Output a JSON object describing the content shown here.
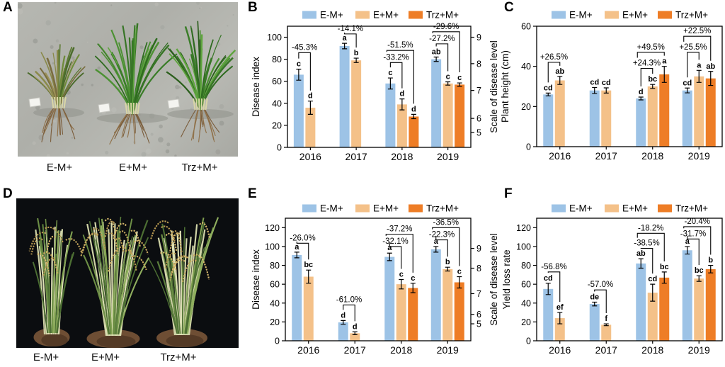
{
  "panels": {
    "A": {
      "letter": "A",
      "labels": [
        "E-M+",
        "E+M+",
        "Trz+M+"
      ]
    },
    "B": {
      "letter": "B"
    },
    "C": {
      "letter": "C"
    },
    "D": {
      "letter": "D",
      "labels": [
        "E-M+",
        "E+M+",
        "Trz+M+"
      ]
    },
    "E": {
      "letter": "E"
    },
    "F": {
      "letter": "F"
    }
  },
  "colors": {
    "series": [
      "#9DC3E6",
      "#F4C189",
      "#EE7D26"
    ],
    "axis": "#000000",
    "text": "#1a1a1a"
  },
  "chart_data": [
    {
      "panel": "B",
      "type": "bar",
      "categories": [
        "2016",
        "2017",
        "2018",
        "2019"
      ],
      "ylabel": "Disease index",
      "y2label": "Scale of disease level",
      "ylim": [
        0,
        110
      ],
      "yticks": [
        0,
        20,
        40,
        60,
        80,
        100
      ],
      "y2ticks": [
        {
          "label": "9",
          "at": 100
        },
        {
          "label": "8",
          "at": 76
        },
        {
          "label": "7",
          "at": 51.7
        },
        {
          "label": "6",
          "at": 26.3
        },
        {
          "label": "5",
          "at": 13.5
        }
      ],
      "legend_position": "top",
      "grid": false,
      "series": [
        {
          "name": "E-M+",
          "values": [
            66,
            92,
            58,
            80
          ],
          "errors": [
            5,
            2.5,
            5,
            2
          ],
          "letters": [
            "c",
            "a",
            "c",
            "ab"
          ]
        },
        {
          "name": "E+M+",
          "values": [
            36,
            79,
            39,
            58
          ],
          "errors": [
            6,
            2,
            5,
            1.5
          ],
          "letters": [
            "d",
            "b",
            "d",
            "c"
          ]
        },
        {
          "name": "Trz+M+",
          "values": [
            null,
            null,
            28,
            57
          ],
          "errors": [
            null,
            null,
            2,
            1.5
          ],
          "letters": [
            "",
            "",
            "d",
            "c"
          ]
        }
      ],
      "annotations": [
        {
          "cat": 0,
          "from": 0,
          "to": 1,
          "text": "-45.3%",
          "top": 86
        },
        {
          "cat": 1,
          "from": 0,
          "to": 1,
          "text": "-14.1%",
          "top": 103
        },
        {
          "cat": 2,
          "from": 0,
          "to": 1,
          "text": "-33.2%",
          "top": 77
        },
        {
          "cat": 2,
          "from": 0,
          "to": 2,
          "text": "-51.5%",
          "top": 88
        },
        {
          "cat": 3,
          "from": 0,
          "to": 1,
          "text": "-27.2%",
          "top": 94
        },
        {
          "cat": 3,
          "from": 0,
          "to": 2,
          "text": "-29.6%",
          "top": 105
        }
      ]
    },
    {
      "panel": "C",
      "type": "bar",
      "categories": [
        "2016",
        "2017",
        "2018",
        "2019"
      ],
      "ylabel": "Plant height (cm)",
      "ylim": [
        0,
        60
      ],
      "yticks": [
        0,
        20,
        40,
        60
      ],
      "legend_position": "top",
      "grid": false,
      "series": [
        {
          "name": "E-M+",
          "values": [
            26,
            28,
            24,
            28
          ],
          "errors": [
            0.7,
            1.5,
            0.7,
            1.2
          ],
          "letters": [
            "cd",
            "cd",
            "d",
            "cd"
          ]
        },
        {
          "name": "E+M+",
          "values": [
            33,
            28,
            30,
            35
          ],
          "errors": [
            2,
            1.3,
            1,
            3
          ],
          "letters": [
            "ab",
            "cd",
            "bc",
            "a"
          ]
        },
        {
          "name": "Trz+M+",
          "values": [
            null,
            null,
            36,
            34
          ],
          "errors": [
            null,
            null,
            4,
            3.5
          ],
          "letters": [
            "",
            "",
            "a",
            "ab"
          ]
        }
      ],
      "annotations": [
        {
          "cat": 0,
          "from": 0,
          "to": 1,
          "text": "+26.5%",
          "top": 42
        },
        {
          "cat": 2,
          "from": 0,
          "to": 1,
          "text": "+24.3%",
          "top": 39
        },
        {
          "cat": 2,
          "from": 0,
          "to": 2,
          "text": "+49.5%",
          "top": 47
        },
        {
          "cat": 3,
          "from": 0,
          "to": 1,
          "text": "+25.5%",
          "top": 47
        },
        {
          "cat": 3,
          "from": 0,
          "to": 2,
          "text": "+22.5%",
          "top": 55
        }
      ]
    },
    {
      "panel": "E",
      "type": "bar",
      "categories": [
        "2016",
        "2017",
        "2018",
        "2019"
      ],
      "ylabel": "Disease index",
      "y2label": "Scale of disease level",
      "ylim": [
        0,
        130
      ],
      "yticks": [
        0,
        20,
        40,
        60,
        80,
        100,
        120
      ],
      "y2ticks": [
        {
          "label": "9",
          "at": 98
        },
        {
          "label": "8",
          "at": 77
        },
        {
          "label": "7",
          "at": 50
        },
        {
          "label": "6",
          "at": 28
        },
        {
          "label": "5",
          "at": 18
        }
      ],
      "legend_position": "top",
      "grid": false,
      "series": [
        {
          "name": "E-M+",
          "values": [
            91,
            19.5,
            89,
            97
          ],
          "errors": [
            3,
            2,
            4,
            3
          ],
          "letters": [
            "a",
            "d",
            "a",
            "a"
          ]
        },
        {
          "name": "E+M+",
          "values": [
            68,
            8,
            60,
            76
          ],
          "errors": [
            7,
            1.5,
            5,
            2
          ],
          "letters": [
            "bc",
            "d",
            "c",
            "b"
          ]
        },
        {
          "name": "Trz+M+",
          "values": [
            null,
            null,
            56,
            62
          ],
          "errors": [
            null,
            null,
            5,
            6
          ],
          "letters": [
            "",
            "",
            "c",
            "c"
          ]
        }
      ],
      "annotations": [
        {
          "cat": 0,
          "from": 0,
          "to": 1,
          "text": "-26.0%",
          "top": 103.5
        },
        {
          "cat": 1,
          "from": 0,
          "to": 1,
          "text": "-61.0%",
          "top": 38
        },
        {
          "cat": 2,
          "from": 0,
          "to": 1,
          "text": "-32.1%",
          "top": 100
        },
        {
          "cat": 2,
          "from": 0,
          "to": 2,
          "text": "-37.2%",
          "top": 113
        },
        {
          "cat": 3,
          "from": 0,
          "to": 1,
          "text": "-22.3%",
          "top": 107
        },
        {
          "cat": 3,
          "from": 0,
          "to": 2,
          "text": "-36.5%",
          "top": 120
        }
      ]
    },
    {
      "panel": "F",
      "type": "bar",
      "categories": [
        "2016",
        "2017",
        "2018",
        "2019"
      ],
      "ylabel": "Yield loss rate",
      "ylim": [
        0,
        130
      ],
      "yticks": [
        0,
        20,
        40,
        60,
        80,
        100,
        120
      ],
      "legend_position": "top",
      "grid": false,
      "series": [
        {
          "name": "E-M+",
          "values": [
            55,
            39,
            82,
            96
          ],
          "errors": [
            6,
            2,
            5,
            4
          ],
          "letters": [
            "cd",
            "de",
            "ab",
            "a"
          ]
        },
        {
          "name": "E+M+",
          "values": [
            24,
            17,
            51,
            66
          ],
          "errors": [
            6,
            1,
            9,
            3
          ],
          "letters": [
            "ef",
            "f",
            "cd",
            "bc"
          ]
        },
        {
          "name": "Trz+M+",
          "values": [
            null,
            null,
            67,
            76
          ],
          "errors": [
            null,
            null,
            6,
            4
          ],
          "letters": [
            "",
            "",
            "bc",
            "b"
          ]
        }
      ],
      "annotations": [
        {
          "cat": 0,
          "from": 0,
          "to": 1,
          "text": "-56.8%",
          "top": 73
        },
        {
          "cat": 1,
          "from": 0,
          "to": 1,
          "text": "-57.0%",
          "top": 54
        },
        {
          "cat": 2,
          "from": 0,
          "to": 1,
          "text": "-38.5%",
          "top": 98
        },
        {
          "cat": 2,
          "from": 0,
          "to": 2,
          "text": "-18.2%",
          "top": 114
        },
        {
          "cat": 3,
          "from": 0,
          "to": 1,
          "text": "-31.7%",
          "top": 108
        },
        {
          "cat": 3,
          "from": 0,
          "to": 2,
          "text": "-20.4%",
          "top": 121
        }
      ]
    }
  ]
}
